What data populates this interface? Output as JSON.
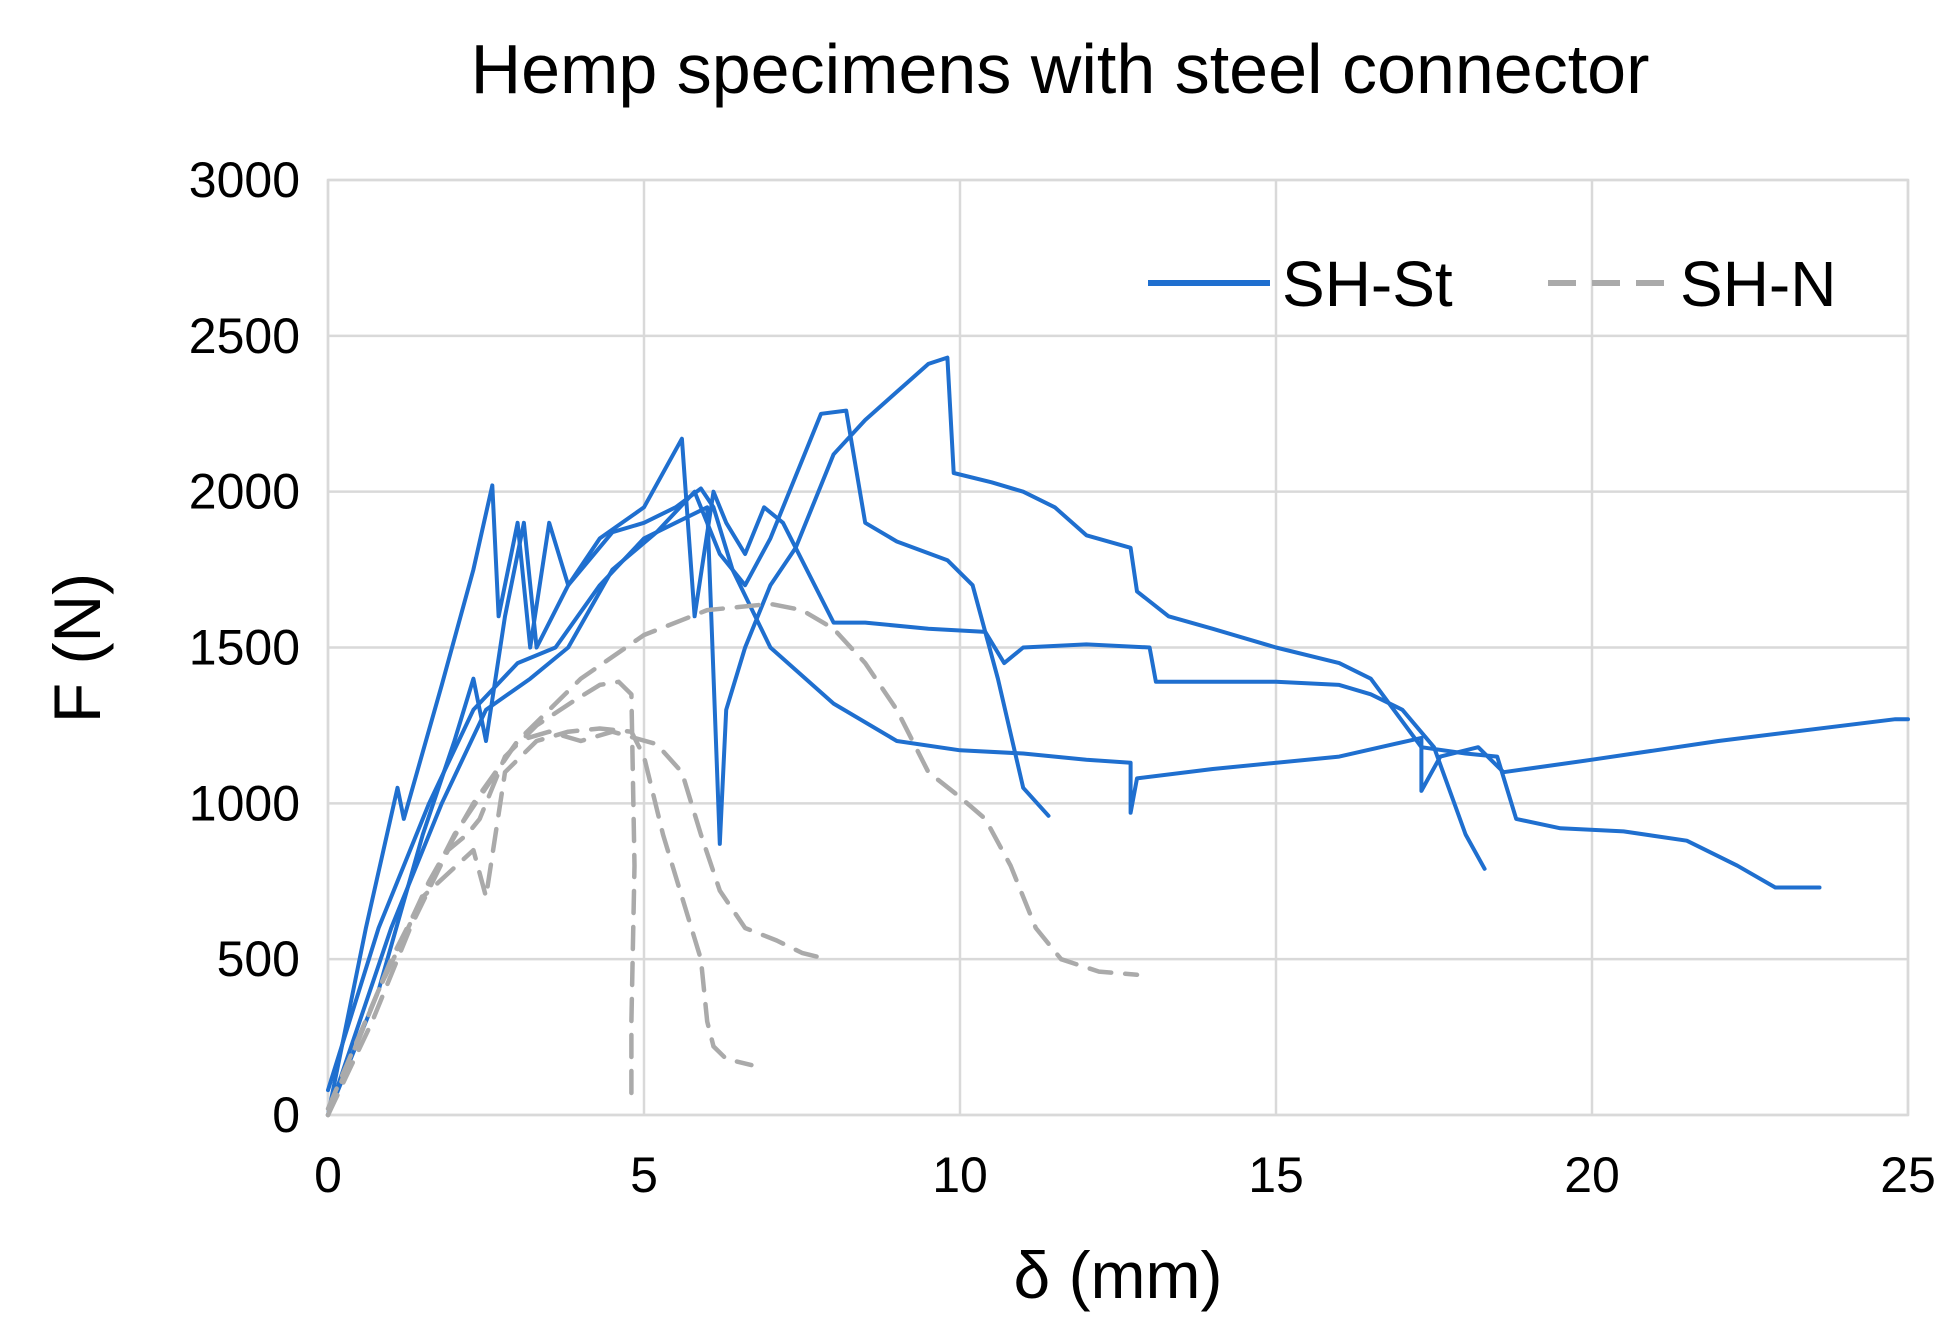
{
  "chart_data": {
    "type": "line",
    "title": "Hemp specimens with steel connector",
    "xlabel": "δ (mm)",
    "ylabel": "F (N)",
    "xlim": [
      0,
      25
    ],
    "ylim": [
      0,
      3000
    ],
    "x_ticks": [
      "0",
      "5",
      "10",
      "15",
      "20",
      "25"
    ],
    "y_ticks": [
      "0",
      "500",
      "1000",
      "1500",
      "2000",
      "2500",
      "3000"
    ],
    "grid": true,
    "legend": {
      "position": "top-right",
      "entries": [
        "SH-St",
        "SH-N"
      ]
    },
    "colors": {
      "SH-St": "#1f6fcf",
      "SH-N": "#aaaaaa"
    },
    "series": [
      {
        "name": "SH-St",
        "style": "solid",
        "points": [
          [
            0,
            0
          ],
          [
            0.6,
            600
          ],
          [
            1.1,
            1050
          ],
          [
            1.2,
            950
          ],
          [
            1.8,
            1380
          ],
          [
            2.3,
            1750
          ],
          [
            2.6,
            2020
          ],
          [
            2.7,
            1600
          ],
          [
            3.0,
            1900
          ],
          [
            3.2,
            1500
          ],
          [
            3.5,
            1900
          ],
          [
            3.8,
            1700
          ],
          [
            4.5,
            1870
          ],
          [
            5.0,
            1900
          ],
          [
            5.5,
            1950
          ],
          [
            5.9,
            2010
          ],
          [
            6.1,
            1950
          ],
          [
            6.4,
            1750
          ],
          [
            7.0,
            1500
          ],
          [
            8.0,
            1320
          ],
          [
            9.0,
            1200
          ],
          [
            10.0,
            1170
          ],
          [
            11.0,
            1160
          ],
          [
            12.0,
            1140
          ],
          [
            12.7,
            1130
          ],
          [
            12.7,
            970
          ],
          [
            12.8,
            1080
          ],
          [
            14.0,
            1110
          ],
          [
            16.0,
            1150
          ],
          [
            17.3,
            1210
          ],
          [
            17.3,
            1040
          ],
          [
            17.6,
            1150
          ],
          [
            18.2,
            1180
          ],
          [
            18.6,
            1100
          ],
          [
            20.0,
            1140
          ],
          [
            22.0,
            1200
          ],
          [
            24.8,
            1270
          ],
          [
            25,
            1270
          ]
        ]
      },
      {
        "name": "SH-St",
        "style": "solid",
        "points": [
          [
            0,
            0
          ],
          [
            0.8,
            400
          ],
          [
            1.5,
            900
          ],
          [
            2.0,
            1200
          ],
          [
            2.3,
            1400
          ],
          [
            2.5,
            1200
          ],
          [
            2.8,
            1600
          ],
          [
            3.1,
            1900
          ],
          [
            3.3,
            1500
          ],
          [
            3.8,
            1700
          ],
          [
            4.3,
            1850
          ],
          [
            5.0,
            1950
          ],
          [
            5.6,
            2170
          ],
          [
            5.8,
            1600
          ],
          [
            6.1,
            2000
          ],
          [
            6.3,
            1900
          ],
          [
            6.6,
            1800
          ],
          [
            6.9,
            1950
          ],
          [
            7.2,
            1900
          ],
          [
            8.0,
            1580
          ],
          [
            8.5,
            1580
          ],
          [
            9.5,
            1560
          ],
          [
            10.4,
            1550
          ],
          [
            10.7,
            1450
          ],
          [
            11.0,
            1500
          ],
          [
            12.0,
            1510
          ],
          [
            13.0,
            1500
          ],
          [
            13.1,
            1390
          ],
          [
            14.0,
            1390
          ],
          [
            15.0,
            1390
          ],
          [
            16.0,
            1380
          ],
          [
            16.5,
            1350
          ],
          [
            17.0,
            1300
          ],
          [
            17.5,
            1180
          ],
          [
            18.0,
            900
          ],
          [
            18.3,
            790
          ]
        ]
      },
      {
        "name": "SH-St",
        "style": "solid",
        "points": [
          [
            0,
            80
          ],
          [
            0.8,
            600
          ],
          [
            1.6,
            1000
          ],
          [
            2.3,
            1300
          ],
          [
            3.0,
            1450
          ],
          [
            3.6,
            1500
          ],
          [
            4.3,
            1700
          ],
          [
            5.0,
            1850
          ],
          [
            5.5,
            1900
          ],
          [
            6.0,
            1950
          ],
          [
            6.2,
            870
          ],
          [
            6.3,
            1300
          ],
          [
            6.6,
            1500
          ],
          [
            7.0,
            1700
          ],
          [
            7.4,
            1820
          ],
          [
            8.0,
            2120
          ],
          [
            8.5,
            2230
          ],
          [
            9.0,
            2320
          ],
          [
            9.5,
            2410
          ],
          [
            9.8,
            2430
          ],
          [
            9.9,
            2060
          ],
          [
            10.5,
            2030
          ],
          [
            11.0,
            2000
          ],
          [
            11.5,
            1950
          ],
          [
            12.0,
            1860
          ],
          [
            12.7,
            1820
          ],
          [
            12.8,
            1680
          ],
          [
            13.3,
            1600
          ],
          [
            14.0,
            1560
          ],
          [
            15.0,
            1500
          ],
          [
            16.0,
            1450
          ],
          [
            16.5,
            1400
          ],
          [
            17.3,
            1180
          ],
          [
            18.0,
            1160
          ],
          [
            18.5,
            1150
          ],
          [
            18.8,
            950
          ],
          [
            19.5,
            920
          ],
          [
            20.5,
            910
          ],
          [
            21.5,
            880
          ],
          [
            22.3,
            800
          ],
          [
            22.9,
            730
          ],
          [
            23.6,
            730
          ]
        ]
      },
      {
        "name": "SH-St",
        "style": "solid",
        "points": [
          [
            0,
            0
          ],
          [
            1.0,
            600
          ],
          [
            1.8,
            1000
          ],
          [
            2.5,
            1300
          ],
          [
            3.2,
            1400
          ],
          [
            3.8,
            1500
          ],
          [
            4.5,
            1750
          ],
          [
            5.2,
            1870
          ],
          [
            5.8,
            2000
          ],
          [
            6.2,
            1800
          ],
          [
            6.6,
            1700
          ],
          [
            7.0,
            1850
          ],
          [
            7.8,
            2250
          ],
          [
            8.2,
            2260
          ],
          [
            8.5,
            1900
          ],
          [
            9.0,
            1840
          ],
          [
            9.8,
            1780
          ],
          [
            10.2,
            1700
          ],
          [
            10.6,
            1400
          ],
          [
            11.0,
            1050
          ],
          [
            11.4,
            960
          ]
        ]
      },
      {
        "name": "SH-N",
        "style": "dashed",
        "points": [
          [
            0,
            0
          ],
          [
            0.7,
            300
          ],
          [
            1.3,
            600
          ],
          [
            1.9,
            850
          ],
          [
            2.2,
            900
          ],
          [
            2.4,
            950
          ],
          [
            2.8,
            1150
          ],
          [
            3.3,
            1250
          ],
          [
            3.9,
            1330
          ],
          [
            4.3,
            1380
          ],
          [
            4.6,
            1390
          ],
          [
            4.8,
            1350
          ],
          [
            4.85,
            800
          ],
          [
            4.8,
            300
          ],
          [
            4.8,
            60
          ],
          [
            4.95,
            50
          ]
        ]
      },
      {
        "name": "SH-N",
        "style": "dashed",
        "points": [
          [
            0,
            0
          ],
          [
            0.8,
            400
          ],
          [
            1.6,
            750
          ],
          [
            2.3,
            1000
          ],
          [
            3.0,
            1200
          ],
          [
            3.5,
            1230
          ],
          [
            4.0,
            1200
          ],
          [
            4.5,
            1230
          ],
          [
            5.2,
            1190
          ],
          [
            5.6,
            1100
          ],
          [
            5.9,
            900
          ],
          [
            6.2,
            720
          ],
          [
            6.6,
            600
          ],
          [
            7.1,
            560
          ],
          [
            7.5,
            520
          ],
          [
            7.9,
            500
          ]
        ]
      },
      {
        "name": "SH-N",
        "style": "dashed",
        "points": [
          [
            0,
            20
          ],
          [
            0.8,
            400
          ],
          [
            1.5,
            700
          ],
          [
            2.3,
            850
          ],
          [
            2.5,
            700
          ],
          [
            2.8,
            1100
          ],
          [
            3.3,
            1200
          ],
          [
            3.8,
            1230
          ],
          [
            4.3,
            1240
          ],
          [
            4.8,
            1230
          ],
          [
            5.0,
            1150
          ],
          [
            5.3,
            900
          ],
          [
            5.6,
            700
          ],
          [
            5.9,
            500
          ],
          [
            6.0,
            300
          ],
          [
            6.1,
            220
          ],
          [
            6.3,
            180
          ],
          [
            6.7,
            160
          ]
        ]
      },
      {
        "name": "SH-N",
        "style": "dashed",
        "points": [
          [
            0,
            0
          ],
          [
            1.0,
            500
          ],
          [
            2.0,
            900
          ],
          [
            3.0,
            1200
          ],
          [
            4.0,
            1400
          ],
          [
            5.0,
            1540
          ],
          [
            6.0,
            1620
          ],
          [
            6.5,
            1630
          ],
          [
            7.0,
            1640
          ],
          [
            7.5,
            1620
          ],
          [
            8.0,
            1560
          ],
          [
            8.5,
            1450
          ],
          [
            9.0,
            1300
          ],
          [
            9.5,
            1100
          ],
          [
            10.0,
            1020
          ],
          [
            10.4,
            950
          ],
          [
            10.8,
            800
          ],
          [
            11.2,
            600
          ],
          [
            11.6,
            500
          ],
          [
            12.2,
            460
          ],
          [
            12.8,
            450
          ]
        ]
      }
    ]
  }
}
